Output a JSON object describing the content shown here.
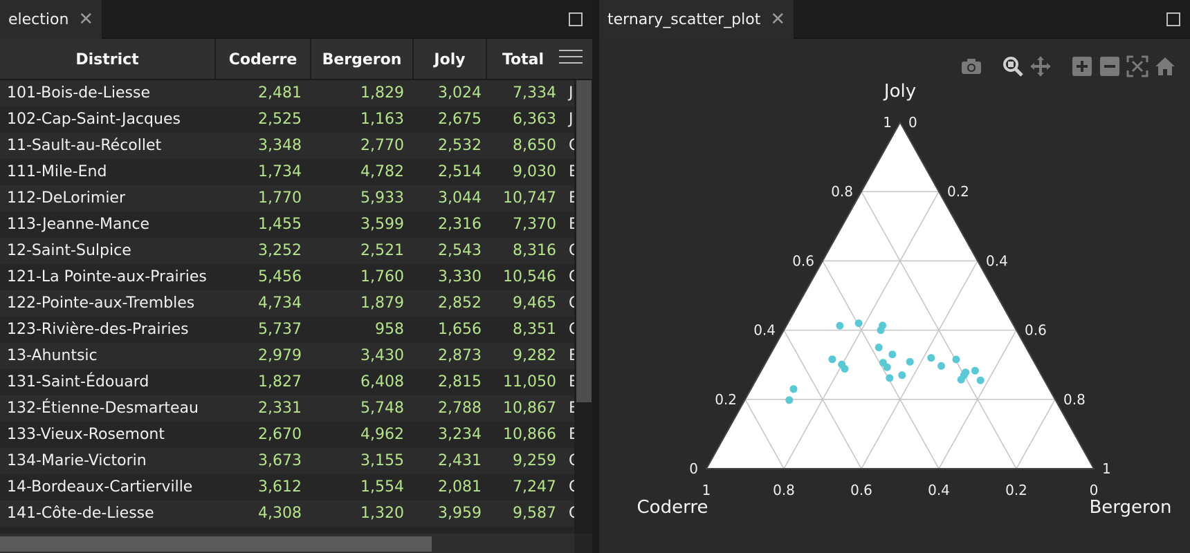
{
  "left_tab": {
    "title": "election",
    "close": "✕"
  },
  "right_tab": {
    "title": "ternary_scatter_plot",
    "close": "✕"
  },
  "table": {
    "columns": [
      "District",
      "Coderre",
      "Bergeron",
      "Joly",
      "Total"
    ],
    "rows": [
      [
        "101-Bois-de-Liesse",
        "2,481",
        "1,829",
        "3,024",
        "7,334",
        "J"
      ],
      [
        "102-Cap-Saint-Jacques",
        "2,525",
        "1,163",
        "2,675",
        "6,363",
        "J"
      ],
      [
        "11-Sault-au-Récollet",
        "3,348",
        "2,770",
        "2,532",
        "8,650",
        "C"
      ],
      [
        "111-Mile-End",
        "1,734",
        "4,782",
        "2,514",
        "9,030",
        "B"
      ],
      [
        "112-DeLorimier",
        "1,770",
        "5,933",
        "3,044",
        "10,747",
        "B"
      ],
      [
        "113-Jeanne-Mance",
        "1,455",
        "3,599",
        "2,316",
        "7,370",
        "B"
      ],
      [
        "12-Saint-Sulpice",
        "3,252",
        "2,521",
        "2,543",
        "8,316",
        "C"
      ],
      [
        "121-La Pointe-aux-Prairies",
        "5,456",
        "1,760",
        "3,330",
        "10,546",
        "C"
      ],
      [
        "122-Pointe-aux-Trembles",
        "4,734",
        "1,879",
        "2,852",
        "9,465",
        "C"
      ],
      [
        "123-Rivière-des-Prairies",
        "5,737",
        "958",
        "1,656",
        "8,351",
        "C"
      ],
      [
        "13-Ahuntsic",
        "2,979",
        "3,430",
        "2,873",
        "9,282",
        "B"
      ],
      [
        "131-Saint-Édouard",
        "1,827",
        "6,408",
        "2,815",
        "11,050",
        "B"
      ],
      [
        "132-Étienne-Desmarteau",
        "2,331",
        "5,748",
        "2,788",
        "10,867",
        "B"
      ],
      [
        "133-Vieux-Rosemont",
        "2,670",
        "4,962",
        "3,234",
        "10,866",
        "B"
      ],
      [
        "134-Marie-Victorin",
        "3,673",
        "3,155",
        "2,431",
        "9,259",
        "C"
      ],
      [
        "14-Bordeaux-Cartierville",
        "3,612",
        "1,554",
        "2,081",
        "7,247",
        "C"
      ],
      [
        "141-Côte-de-Liesse",
        "4,308",
        "1,320",
        "3,959",
        "9,587",
        "C"
      ]
    ]
  },
  "modebar": {
    "icons": [
      "camera-icon",
      "zoom-icon",
      "pan-icon",
      "zoom-in-icon",
      "zoom-out-icon",
      "autoscale-icon",
      "reset-axes-icon"
    ]
  },
  "colors": {
    "marker": "#5bc8d6",
    "triangle_bg": "#ffffff",
    "grid": "#c4c4c4",
    "number_text": "#b5e48c"
  },
  "chart_data": {
    "type": "scatter",
    "subtype": "ternary",
    "axes": {
      "a": "Joly",
      "b": "Coderre",
      "c": "Bergeron"
    },
    "tick_labels": [
      "0",
      "0.2",
      "0.4",
      "0.6",
      "0.8",
      "1"
    ],
    "grid": true,
    "points": [
      {
        "a": 0.412,
        "b": 0.338,
        "c": 0.249
      },
      {
        "a": 0.42,
        "b": 0.397,
        "c": 0.183
      },
      {
        "a": 0.293,
        "b": 0.387,
        "c": 0.32
      },
      {
        "a": 0.278,
        "b": 0.192,
        "c": 0.53
      },
      {
        "a": 0.283,
        "b": 0.165,
        "c": 0.552
      },
      {
        "a": 0.314,
        "b": 0.197,
        "c": 0.488
      },
      {
        "a": 0.306,
        "b": 0.391,
        "c": 0.303
      },
      {
        "a": 0.316,
        "b": 0.517,
        "c": 0.167
      },
      {
        "a": 0.301,
        "b": 0.5,
        "c": 0.199
      },
      {
        "a": 0.198,
        "b": 0.687,
        "c": 0.115
      },
      {
        "a": 0.31,
        "b": 0.321,
        "c": 0.37
      },
      {
        "a": 0.255,
        "b": 0.165,
        "c": 0.58
      },
      {
        "a": 0.257,
        "b": 0.214,
        "c": 0.529
      },
      {
        "a": 0.298,
        "b": 0.246,
        "c": 0.457
      },
      {
        "a": 0.263,
        "b": 0.397,
        "c": 0.341
      },
      {
        "a": 0.287,
        "b": 0.498,
        "c": 0.214
      },
      {
        "a": 0.413,
        "b": 0.449,
        "c": 0.138
      },
      {
        "a": 0.35,
        "b": 0.38,
        "c": 0.27
      },
      {
        "a": 0.33,
        "b": 0.355,
        "c": 0.315
      },
      {
        "a": 0.27,
        "b": 0.36,
        "c": 0.37
      },
      {
        "a": 0.23,
        "b": 0.66,
        "c": 0.11
      },
      {
        "a": 0.32,
        "b": 0.26,
        "c": 0.42
      },
      {
        "a": 0.4,
        "b": 0.35,
        "c": 0.25
      },
      {
        "a": 0.27,
        "b": 0.2,
        "c": 0.53
      }
    ]
  }
}
